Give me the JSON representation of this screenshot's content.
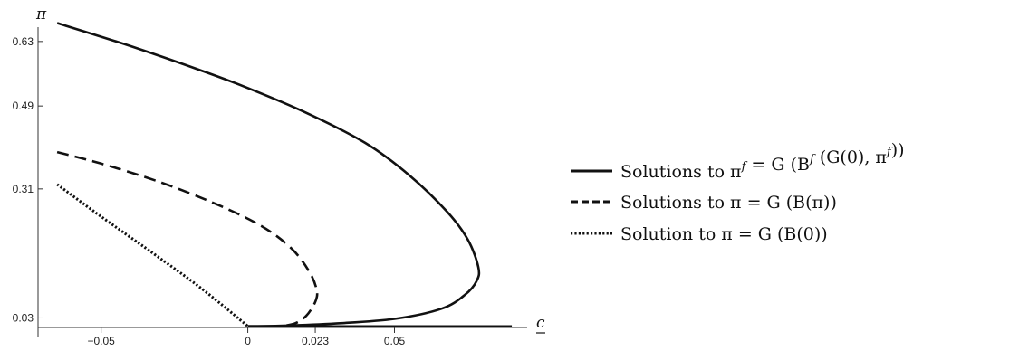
{
  "chart_data": {
    "type": "line",
    "xlabel": "c",
    "ylabel": "π",
    "xlim": [
      -0.0715,
      0.0977
    ],
    "ylim": [
      -0.026,
      0.72
    ],
    "x_ticks": [
      {
        "value": -0.05,
        "label": "−0.05"
      },
      {
        "value": 0,
        "label": "0"
      },
      {
        "value": 0.023,
        "label": "0.023"
      },
      {
        "value": 0.05,
        "label": "0.05"
      }
    ],
    "y_ticks": [
      {
        "value": 0.03,
        "label": "0.03"
      },
      {
        "value": 0.31,
        "label": "0.31"
      },
      {
        "value": 0.49,
        "label": "0.49"
      },
      {
        "value": 0.63,
        "label": "0.63"
      }
    ],
    "grid": false,
    "legend_position": "right",
    "series": [
      {
        "name": "Solutions to π^f = G(B^f(G(0), π^f))",
        "style": "solid",
        "points": [
          [
            -0.065,
            0.67
          ],
          [
            -0.04,
            0.62
          ],
          [
            -0.015,
            0.565
          ],
          [
            0,
            0.529
          ],
          [
            0.02,
            0.475
          ],
          [
            0.04,
            0.41
          ],
          [
            0.055,
            0.34
          ],
          [
            0.068,
            0.26
          ],
          [
            0.075,
            0.2
          ],
          [
            0.0786,
            0.14
          ],
          [
            0.078,
            0.11
          ],
          [
            0.074,
            0.08
          ],
          [
            0.066,
            0.05
          ],
          [
            0.05,
            0.028
          ],
          [
            0.03,
            0.018
          ],
          [
            0.012,
            0.013
          ],
          [
            0,
            0.012
          ]
        ]
      },
      {
        "name": "Solutions to π = G(B(π))",
        "style": "dashed",
        "points": [
          [
            -0.065,
            0.39
          ],
          [
            -0.05,
            0.365
          ],
          [
            -0.03,
            0.325
          ],
          [
            -0.01,
            0.275
          ],
          [
            0.005,
            0.228
          ],
          [
            0.015,
            0.18
          ],
          [
            0.021,
            0.13
          ],
          [
            0.0235,
            0.09
          ],
          [
            0.023,
            0.065
          ],
          [
            0.02,
            0.035
          ],
          [
            0.016,
            0.018
          ],
          [
            0.011,
            0.012
          ]
        ]
      },
      {
        "name": "Solution to π = G(B(0))",
        "style": "dotted",
        "points": [
          [
            -0.065,
            0.32
          ],
          [
            -0.05,
            0.25
          ],
          [
            -0.03,
            0.16
          ],
          [
            -0.015,
            0.09
          ],
          [
            0,
            0.012
          ]
        ]
      }
    ],
    "baseline": {
      "y": 0.012,
      "x_from": 0,
      "x_to": 0.09
    },
    "legend": [
      {
        "style": "solid",
        "text": "Solutions to π",
        "sup": "f",
        "rest": " = G (B",
        "sup2": "f",
        "rest2": " (G(0), π",
        "sup3": "f",
        "rest3": "))"
      },
      {
        "style": "dashed",
        "text": "Solutions to π = G (B(π))"
      },
      {
        "style": "dotted",
        "text": "Solution to π = G (B(0))"
      }
    ],
    "colors": {
      "line": "#111111",
      "axis": "#333333"
    }
  }
}
